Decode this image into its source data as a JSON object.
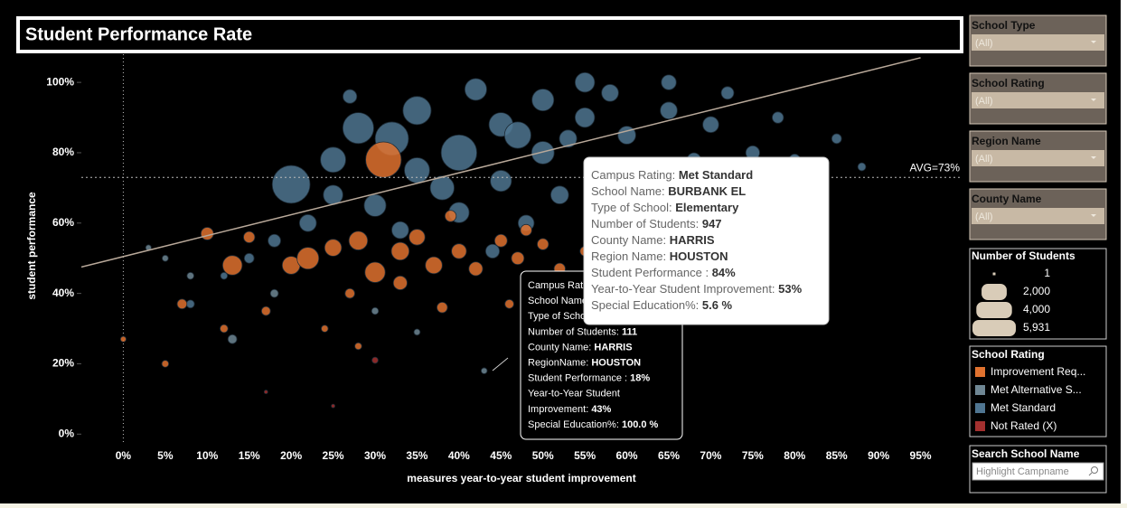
{
  "chart_data": {
    "type": "scatter",
    "title": "Student Performance Rate",
    "x_label": "measures year-to-year student improvement",
    "y_label": "student performance",
    "xlim": [
      -5,
      100
    ],
    "ylim": [
      -2.5,
      108
    ],
    "xticks": [
      {
        "value": 0,
        "label": "0%"
      },
      {
        "value": 5,
        "label": "5%"
      },
      {
        "value": 10,
        "label": "10%"
      },
      {
        "value": 15,
        "label": "15%"
      },
      {
        "value": 20,
        "label": "20%"
      },
      {
        "value": 25,
        "label": "25%"
      },
      {
        "value": 30,
        "label": "30%"
      },
      {
        "value": 35,
        "label": "35%"
      },
      {
        "value": 40,
        "label": "40%"
      },
      {
        "value": 45,
        "label": "45%"
      },
      {
        "value": 50,
        "label": "50%"
      },
      {
        "value": 55,
        "label": "55%"
      },
      {
        "value": 60,
        "label": "60%"
      },
      {
        "value": 65,
        "label": "65%"
      },
      {
        "value": 70,
        "label": "70%"
      },
      {
        "value": 75,
        "label": "75%"
      },
      {
        "value": 80,
        "label": "80%"
      },
      {
        "value": 85,
        "label": "85%"
      },
      {
        "value": 90,
        "label": "90%"
      },
      {
        "value": 95,
        "label": "95%"
      }
    ],
    "yticks": [
      {
        "value": 0,
        "label": "0%"
      },
      {
        "value": 20,
        "label": "20%"
      },
      {
        "value": 40,
        "label": "40%"
      },
      {
        "value": 60,
        "label": "60%"
      },
      {
        "value": 80,
        "label": "80%"
      },
      {
        "value": 100,
        "label": "100%"
      }
    ],
    "average": {
      "value": 73,
      "label": "AVG=73%"
    },
    "trend_line": {
      "x": [
        -5,
        95
      ],
      "y": [
        47.5,
        107
      ]
    },
    "legend_title": "School Rating",
    "series": [
      {
        "name": "Improvement Req...",
        "color": "#e0722f",
        "x": [
          31,
          13,
          20,
          22,
          25,
          28,
          30,
          33,
          35,
          37,
          40,
          42,
          45,
          47,
          50,
          52,
          55,
          57,
          10,
          7,
          5,
          0,
          17,
          27,
          38,
          46,
          12,
          24,
          28,
          33,
          15,
          60,
          48,
          39
        ],
        "values": [
          78,
          48,
          48,
          50,
          53,
          55,
          46,
          52,
          56,
          48,
          52,
          47,
          55,
          50,
          54,
          47,
          52,
          58,
          57,
          37,
          20,
          27,
          35,
          40,
          36,
          37,
          30,
          30,
          25,
          43,
          56,
          48,
          58,
          62
        ],
        "sizes": [
          4000,
          1200,
          1000,
          1500,
          900,
          1100,
          1300,
          1000,
          800,
          900,
          700,
          600,
          500,
          500,
          400,
          400,
          300,
          300,
          500,
          300,
          150,
          100,
          250,
          300,
          350,
          250,
          200,
          150,
          150,
          600,
          400,
          150,
          400,
          400
        ]
      },
      {
        "name": "Met Alternative S...",
        "color": "#6f8794",
        "x": [
          43,
          13,
          8,
          5,
          18,
          30,
          3,
          60,
          35,
          50
        ],
        "values": [
          18,
          27,
          45,
          50,
          40,
          35,
          53,
          40,
          29,
          42
        ],
        "sizes": [
          111,
          250,
          150,
          120,
          200,
          150,
          100,
          100,
          120,
          100
        ]
      },
      {
        "name": "Met Standard",
        "color": "#4f7591",
        "x": [
          20,
          32,
          40,
          28,
          35,
          25,
          45,
          50,
          55,
          60,
          65,
          70,
          75,
          80,
          85,
          30,
          38,
          45,
          52,
          58,
          62,
          48,
          42,
          55,
          65,
          72,
          22,
          18,
          15,
          27,
          35,
          50,
          47,
          58,
          68,
          78,
          53,
          88,
          12,
          8,
          25,
          40,
          33,
          44,
          56
        ],
        "values": [
          71,
          84,
          80,
          87,
          92,
          78,
          88,
          95,
          90,
          85,
          92,
          88,
          80,
          78,
          84,
          65,
          70,
          72,
          68,
          75,
          63,
          60,
          98,
          100,
          100,
          97,
          60,
          55,
          50,
          96,
          75,
          80,
          85,
          97,
          78,
          90,
          84,
          76,
          45,
          37,
          68,
          63,
          58,
          52,
          56
        ],
        "sizes": [
          4500,
          3500,
          4000,
          3000,
          2500,
          2000,
          1800,
          1500,
          1200,
          1000,
          900,
          800,
          600,
          400,
          300,
          1500,
          1800,
          1400,
          1000,
          900,
          700,
          800,
          1500,
          1200,
          700,
          500,
          900,
          500,
          300,
          600,
          2000,
          1600,
          2200,
          900,
          600,
          400,
          947,
          200,
          150,
          200,
          1200,
          1300,
          900,
          600,
          500
        ]
      },
      {
        "name": "Not Rated (X)",
        "color": "#a3302f",
        "x": [
          30,
          17,
          25
        ],
        "values": [
          21,
          12,
          8
        ],
        "sizes": [
          120,
          40,
          40
        ]
      }
    ],
    "size_legend": {
      "title": "Number of Students",
      "values": [
        1,
        {
          "value": 2000,
          "label": "2,000"
        },
        {
          "value": 4000,
          "label": "4,000"
        },
        {
          "value": 5931,
          "label": "5,931"
        }
      ]
    }
  },
  "filters": [
    {
      "title": "School Type",
      "value": "(All)"
    },
    {
      "title": "School Rating",
      "value": "(All)"
    },
    {
      "title": "Region Name",
      "value": "(All)"
    },
    {
      "title": "County Name",
      "value": "(All)"
    }
  ],
  "search": {
    "title": "Search School Name",
    "placeholder": "Highlight Campname"
  },
  "tooltip_main": {
    "rows": [
      {
        "label": "Campus Rating: ",
        "value": "Met Standard"
      },
      {
        "label": "School Name: ",
        "value": "BURBANK EL"
      },
      {
        "label": "Type of School:  ",
        "value": "Elementary"
      },
      {
        "label": "Number of Students: ",
        "value": "947"
      },
      {
        "label": "County Name: ",
        "value": "HARRIS"
      },
      {
        "label": "Region Name: ",
        "value": "HOUSTON"
      },
      {
        "label": "Student Performance : ",
        "value": "84%"
      },
      {
        "label": "Year-to-Year Student Improvement: ",
        "value": "53%"
      },
      {
        "label": "Special Education%: ",
        "value": "5.6 %"
      }
    ]
  },
  "tooltip_second": {
    "rows": [
      {
        "label": "Campus Rat"
      },
      {
        "label": "School Name"
      },
      {
        "label": "Type of Scho"
      },
      {
        "label": "Number of Students: ",
        "value": "111"
      },
      {
        "label": "County Name: ",
        "value": "HARRIS"
      },
      {
        "label": "RegionName: ",
        "value": "HOUSTON"
      },
      {
        "label": "Student Performance : ",
        "value": "18%"
      },
      {
        "label": "Year-to-Year Student"
      },
      {
        "label": "Improvement: ",
        "value": "43%"
      },
      {
        "label": "Special Education%: ",
        "value": "100.0 %"
      }
    ]
  }
}
